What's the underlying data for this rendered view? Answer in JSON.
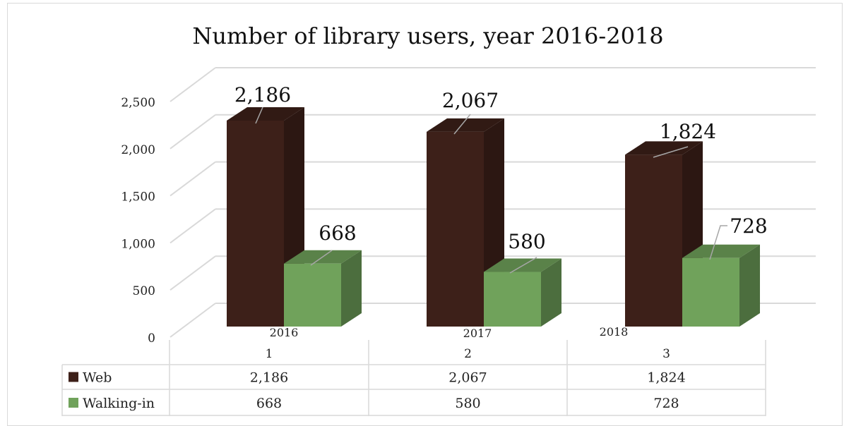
{
  "chart_data": {
    "type": "bar",
    "title": "Number of library users, year 2016-2018",
    "categories": [
      "1",
      "2",
      "3"
    ],
    "year_labels": [
      "2016",
      "2017",
      "2018"
    ],
    "series": [
      {
        "name": "Web",
        "values": [
          2186,
          2067,
          1824
        ],
        "color": "#3d2019",
        "labels": [
          "2,186",
          "2,067",
          "1,824"
        ]
      },
      {
        "name": "Walking-in",
        "values": [
          668,
          580,
          728
        ],
        "color": "#70a25b",
        "labels": [
          "668",
          "580",
          "728"
        ]
      }
    ],
    "yticks": [
      "0",
      "500",
      "1,000",
      "1,500",
      "2,000",
      "2,500"
    ],
    "ylim": [
      0,
      2500
    ],
    "grid": true,
    "data_table": true,
    "legend_placement": "data-table"
  }
}
